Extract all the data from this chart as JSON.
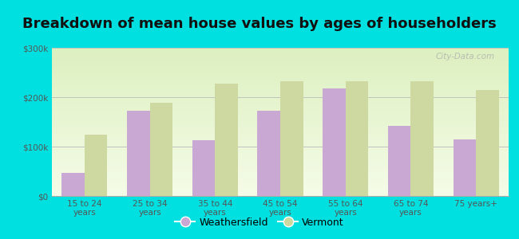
{
  "title": "Breakdown of mean house values by ages of householders",
  "categories": [
    "15 to 24\nyears",
    "25 to 34\nyears",
    "35 to 44\nyears",
    "45 to 54\nyears",
    "55 to 64\nyears",
    "65 to 74\nyears",
    "75 years+"
  ],
  "weathersfield": [
    47000,
    172000,
    113000,
    172000,
    218000,
    142000,
    115000
  ],
  "vermont": [
    125000,
    188000,
    228000,
    233000,
    232000,
    232000,
    215000
  ],
  "bar_color_weathersfield": "#c9a8d4",
  "bar_color_vermont": "#cdd9a0",
  "background_color": "#00e0e0",
  "ylim": [
    0,
    300000
  ],
  "yticks": [
    0,
    100000,
    200000,
    300000
  ],
  "ytick_labels": [
    "$0",
    "$100k",
    "$200k",
    "$300k"
  ],
  "bar_width": 0.35,
  "legend_labels": [
    "Weathersfield",
    "Vermont"
  ],
  "watermark": "City-Data.com",
  "title_fontsize": 13,
  "tick_fontsize": 7.5,
  "legend_fontsize": 9
}
